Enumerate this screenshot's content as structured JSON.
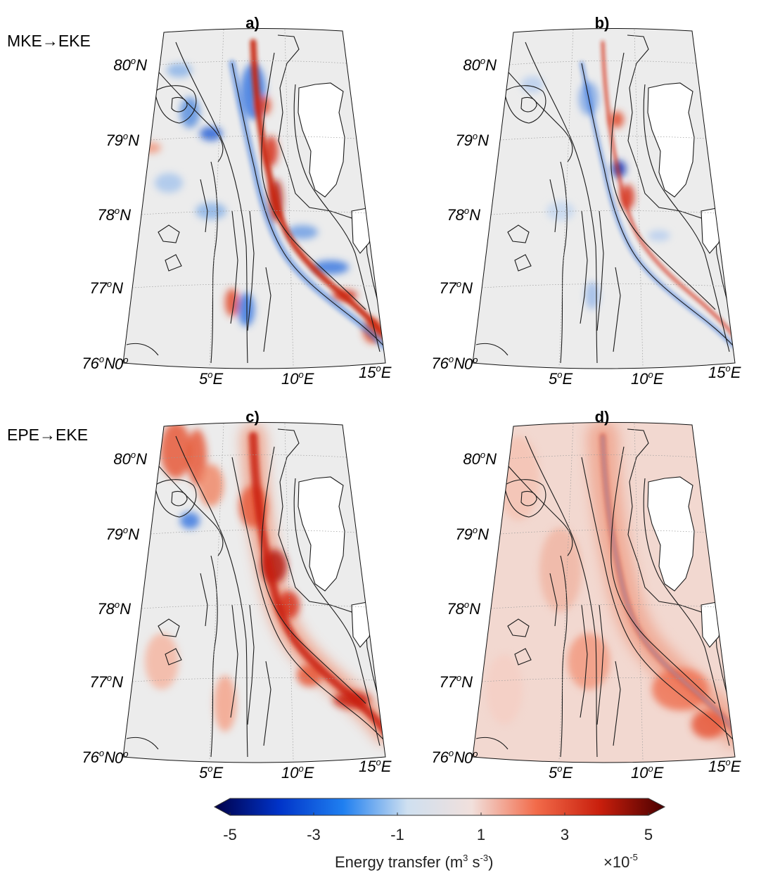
{
  "row_labels": [
    "MKE→EKE",
    "EPE→EKE"
  ],
  "panels": [
    {
      "letter": "a)",
      "row": 0,
      "col": 0,
      "pattern": "mke-a"
    },
    {
      "letter": "b)",
      "row": 0,
      "col": 1,
      "pattern": "mke-b"
    },
    {
      "letter": "c)",
      "row": 1,
      "col": 0,
      "pattern": "epe-c"
    },
    {
      "letter": "d)",
      "row": 1,
      "col": 1,
      "pattern": "epe-d"
    }
  ],
  "lat_labels": [
    {
      "deg": "80",
      "sup": "o",
      "hem": "N"
    },
    {
      "deg": "79",
      "sup": "o",
      "hem": "N"
    },
    {
      "deg": "78",
      "sup": "o",
      "hem": "N"
    },
    {
      "deg": "77",
      "sup": "o",
      "hem": "N"
    },
    {
      "deg": "76",
      "sup": "o",
      "hem": "N"
    }
  ],
  "lon_labels": [
    {
      "deg": "0",
      "sup": "o",
      "hem": ""
    },
    {
      "deg": "5",
      "sup": "o",
      "hem": "E"
    },
    {
      "deg": "10",
      "sup": "o",
      "hem": "E"
    },
    {
      "deg": "15",
      "sup": "o",
      "hem": "E"
    }
  ],
  "colorbar": {
    "ticks": [
      "-5",
      "-3",
      "-1",
      "1",
      "3",
      "5"
    ],
    "tick_values": [
      -5,
      -3,
      -1,
      1,
      3,
      5
    ],
    "range": [
      -5,
      5
    ],
    "title_main": "Energy transfer (m",
    "title_sup1": "3",
    "title_mid": " s",
    "title_sup2": "-3",
    "title_end": ")",
    "multiplier_main": "×10",
    "multiplier_sup": "-5",
    "colors": [
      "#00004a",
      "#0033c8",
      "#1f7ff0",
      "#cfe0f0",
      "#f1e0dc",
      "#f26b4a",
      "#c81e0c",
      "#4a0000"
    ]
  },
  "colors": {
    "land": "#ffffff",
    "ocean_neutral": "#ececec",
    "contour": "#1a1a1a",
    "grid": "#9a9a9a"
  }
}
